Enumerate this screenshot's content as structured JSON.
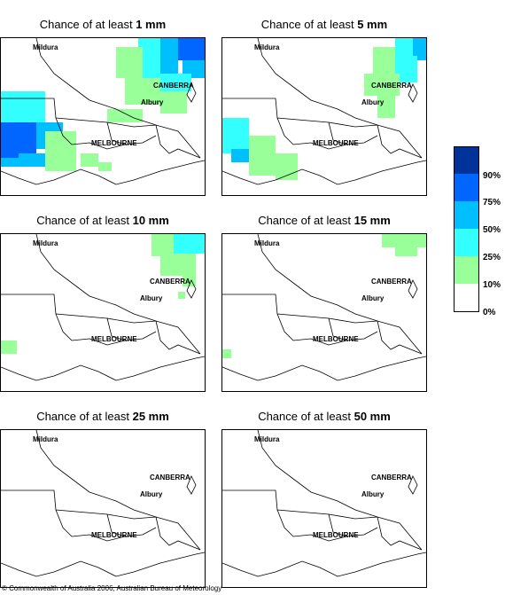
{
  "panels": [
    {
      "title_prefix": "Chance of at least",
      "amount": "1 mm"
    },
    {
      "title_prefix": "Chance of at least",
      "amount": "5 mm"
    },
    {
      "title_prefix": "Chance of at least",
      "amount": "10 mm"
    },
    {
      "title_prefix": "Chance of at least",
      "amount": "15 mm"
    },
    {
      "title_prefix": "Chance of at least",
      "amount": "25 mm"
    },
    {
      "title_prefix": "Chance of at least",
      "amount": "50 mm"
    }
  ],
  "place_labels": {
    "mildura": "Mildura",
    "canberra": "CANBERRA",
    "albury": "Albury",
    "melbourne": "MELBOURNE"
  },
  "legend": {
    "labels": [
      "90%",
      "75%",
      "50%",
      "25%",
      "10%",
      "0%"
    ],
    "colors": [
      "#003399",
      "#0066ff",
      "#00bfff",
      "#33ffff",
      "#99ff99",
      "#ffffff"
    ]
  },
  "colors": {
    "land_outline": "#000000",
    "background": "#ffffff"
  },
  "copyright": "© Commonwealth of Australia 2006, Australian Bureau of Meteorology"
}
